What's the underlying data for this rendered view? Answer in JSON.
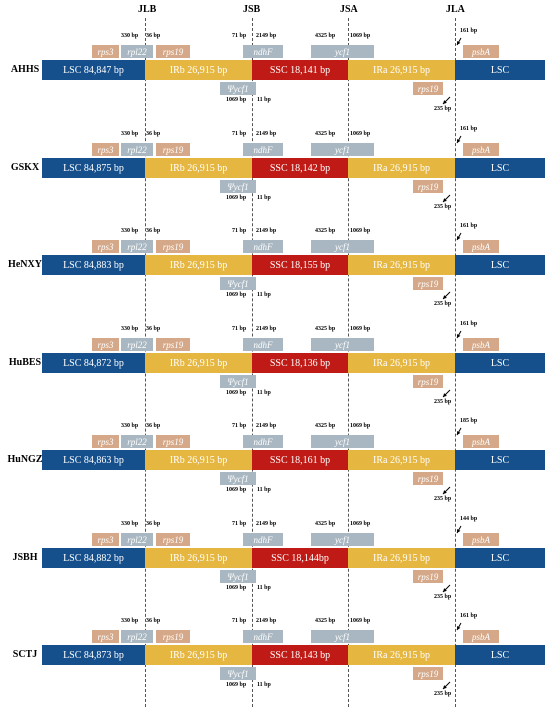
{
  "junctions": [
    "JLB",
    "JSB",
    "JSA",
    "JLA"
  ],
  "colors": {
    "LSC": "#16508c",
    "IR": "#e5b640",
    "SSC": "#bf1a15",
    "gene_tan": "#d4a888",
    "gene_gray": "#a8b7c1"
  },
  "genes": {
    "rps3": "rps3",
    "rpl22": "rpl22",
    "rps19": "rps19",
    "ndhF": "ndhF",
    "ycf1": "ycf1",
    "psbA": "psbA",
    "ycf1_pseudo": "Ψycf1"
  },
  "region_labels": {
    "LSC": "LSC",
    "IRb": "IRb",
    "SSC": "SSC",
    "IRa": "IRa"
  },
  "common_bp": {
    "rps3_end": "330 bp",
    "rpl22_over": "36 bp",
    "jsb_left": "71 bp",
    "ndhF_right": "2149 bp",
    "ycf1_left": "4325 bp",
    "ycf1_right": "1069 bp",
    "pycf1_left": "1069 bp",
    "pycf1_gap": "11 bp",
    "rps19_gap": "235 bp"
  },
  "species": [
    {
      "name": "AHHS",
      "lsc": "LSC  84,847 bp",
      "irb": "IRb  26,915 bp",
      "ssc": "SSC  18,141 bp",
      "ira": "IRa  26,915 bp",
      "lsc2": "LSC",
      "psba_gap": "161 bp"
    },
    {
      "name": "GSKX",
      "lsc": "LSC  84,875 bp",
      "irb": "IRb  26,915 bp",
      "ssc": "SSC  18,142 bp",
      "ira": "IRa  26,915 bp",
      "lsc2": "LSC",
      "psba_gap": "161 bp"
    },
    {
      "name": "HeNXY",
      "lsc": "LSC  84,883 bp",
      "irb": "IRb  26,915 bp",
      "ssc": "SSC  18,155 bp",
      "ira": "IRa  26,915 bp",
      "lsc2": "LSC",
      "psba_gap": "161 bp"
    },
    {
      "name": "HuBES",
      "lsc": "LSC  84,872 bp",
      "irb": "IRb  26,915 bp",
      "ssc": "SSC  18,136 bp",
      "ira": "IRa  26,915 bp",
      "lsc2": "LSC",
      "psba_gap": "161 bp"
    },
    {
      "name": "HuNGZ",
      "lsc": "LSC  84,863 bp",
      "irb": "IRb  26,915 bp",
      "ssc": "SSC  18,161 bp",
      "ira": "IRa  26,915 bp",
      "lsc2": "LSC",
      "psba_gap": "185 bp"
    },
    {
      "name": "JSBH",
      "lsc": "LSC  84,882 bp",
      "irb": "IRb  26,915 bp",
      "ssc": "SSC  18,144bp",
      "ira": "IRa  26,915 bp",
      "lsc2": "LSC",
      "psba_gap": "144 bp"
    },
    {
      "name": "SCTJ",
      "lsc": "LSC  84,873 bp",
      "irb": "IRb  26,915 bp",
      "ssc": "SSC  18,143 bp",
      "ira": "IRa  26,915 bp",
      "lsc2": "LSC",
      "psba_gap": "161 bp"
    }
  ]
}
